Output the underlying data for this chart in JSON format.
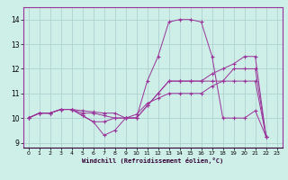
{
  "xlabel": "Windchill (Refroidissement éolien,°C)",
  "xlim": [
    -0.5,
    23.5
  ],
  "ylim": [
    8.8,
    14.5
  ],
  "yticks": [
    9,
    10,
    11,
    12,
    13,
    14
  ],
  "xticks": [
    0,
    1,
    2,
    3,
    4,
    5,
    6,
    7,
    8,
    9,
    10,
    11,
    12,
    13,
    14,
    15,
    16,
    17,
    18,
    19,
    20,
    21,
    22,
    23
  ],
  "bg_color": "#ceeee8",
  "grid_color": "#aacccc",
  "line_color": "#993399",
  "series": [
    [
      10.0,
      10.2,
      10.2,
      10.35,
      10.35,
      10.1,
      9.85,
      9.3,
      9.5,
      10.0,
      10.0,
      11.5,
      12.5,
      13.9,
      14.0,
      14.0,
      13.9,
      12.5,
      10.0,
      10.0,
      10.0,
      10.3,
      9.25
    ],
    [
      10.0,
      10.2,
      10.2,
      10.35,
      10.35,
      10.1,
      9.85,
      9.85,
      10.0,
      10.0,
      10.0,
      10.5,
      11.0,
      11.5,
      11.5,
      11.5,
      11.5,
      11.5,
      11.5,
      11.5,
      11.5,
      11.5,
      9.25
    ],
    [
      10.0,
      10.2,
      10.2,
      10.35,
      10.35,
      10.2,
      10.2,
      10.1,
      10.0,
      10.0,
      10.0,
      10.5,
      11.0,
      11.5,
      11.5,
      11.5,
      11.5,
      11.8,
      12.0,
      12.2,
      12.5,
      12.5,
      9.25
    ],
    [
      10.0,
      10.2,
      10.2,
      10.35,
      10.35,
      10.3,
      10.25,
      10.2,
      10.2,
      10.0,
      10.15,
      10.6,
      10.8,
      11.0,
      11.0,
      11.0,
      11.0,
      11.3,
      11.5,
      12.0,
      12.0,
      12.0,
      9.25
    ]
  ]
}
